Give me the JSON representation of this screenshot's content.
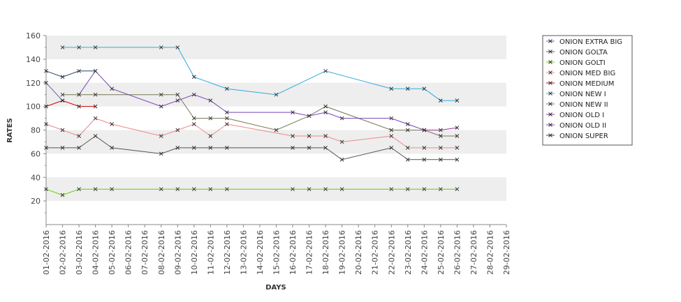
{
  "chart_data": {
    "type": "line",
    "title": "",
    "xlabel": "DAYS",
    "ylabel": "RATES",
    "ylim": [
      0,
      160
    ],
    "yticks": [
      20,
      40,
      60,
      80,
      100,
      120,
      140,
      160
    ],
    "grid": false,
    "background_bands": true,
    "legend_position": "right",
    "x": [
      "01-02-2016",
      "02-02-2016",
      "03-02-2016",
      "04-02-2016",
      "05-02-2016",
      "06-02-2016",
      "07-02-2016",
      "08-02-2016",
      "09-02-2016",
      "10-02-2016",
      "11-02-2016",
      "12-02-2016",
      "13-02-2016",
      "14-02-2016",
      "15-02-2016",
      "16-02-2016",
      "17-02-2016",
      "18-02-2016",
      "19-02-2016",
      "20-02-2016",
      "21-02-2016",
      "22-02-2016",
      "23-02-2016",
      "24-02-2016",
      "25-02-2016",
      "26-02-2016",
      "27-02-2016",
      "28-02-2016",
      "29-02-2016"
    ],
    "series": [
      {
        "name": "ONION EXTRA BIG",
        "color": "#6b5ea8",
        "values": [
          120,
          105,
          null,
          null,
          null,
          null,
          null,
          null,
          null,
          null,
          null,
          null,
          null,
          null,
          null,
          null,
          null,
          null,
          null,
          null,
          null,
          null,
          null,
          null,
          null,
          null,
          null,
          null,
          null
        ]
      },
      {
        "name": "ONION GOLTA",
        "color": "#555555",
        "values": [
          65,
          65,
          65,
          75,
          65,
          null,
          null,
          60,
          65,
          65,
          65,
          65,
          null,
          null,
          null,
          65,
          65,
          65,
          55,
          null,
          null,
          65,
          55,
          55,
          55,
          55,
          null,
          null,
          null
        ]
      },
      {
        "name": "ONION GOLTI",
        "color": "#66cc00",
        "values": [
          30,
          25,
          30,
          30,
          30,
          null,
          null,
          30,
          30,
          30,
          30,
          30,
          null,
          null,
          null,
          30,
          30,
          30,
          30,
          null,
          null,
          30,
          30,
          30,
          30,
          30,
          null,
          null,
          null
        ]
      },
      {
        "name": "ONION MED BIG",
        "color": "#ee8888",
        "values": [
          85,
          80,
          75,
          90,
          85,
          null,
          null,
          75,
          80,
          85,
          75,
          85,
          null,
          null,
          null,
          75,
          75,
          75,
          70,
          null,
          null,
          75,
          65,
          65,
          65,
          65,
          null,
          null,
          null
        ]
      },
      {
        "name": "ONION MEDIUM",
        "color": "#cc0000",
        "values": [
          100,
          105,
          100,
          100,
          null,
          null,
          null,
          null,
          null,
          null,
          null,
          null,
          null,
          null,
          null,
          null,
          null,
          null,
          null,
          null,
          null,
          null,
          null,
          null,
          null,
          null,
          null,
          null,
          null
        ]
      },
      {
        "name": "ONION NEW I",
        "color": "#33aadd",
        "values": [
          null,
          150,
          150,
          150,
          null,
          null,
          null,
          150,
          150,
          125,
          null,
          115,
          null,
          null,
          110,
          null,
          null,
          130,
          null,
          null,
          null,
          115,
          115,
          115,
          105,
          105,
          null,
          null,
          null
        ]
      },
      {
        "name": "ONION NEW II",
        "color": "#777755",
        "values": [
          null,
          110,
          110,
          110,
          null,
          null,
          null,
          110,
          110,
          90,
          90,
          90,
          null,
          null,
          80,
          null,
          92,
          100,
          null,
          null,
          null,
          80,
          80,
          80,
          75,
          75,
          null,
          null,
          null
        ]
      },
      {
        "name": "ONION OLD I",
        "color": "#993399",
        "values": [
          null,
          null,
          null,
          null,
          null,
          null,
          null,
          null,
          null,
          null,
          null,
          null,
          null,
          null,
          null,
          null,
          null,
          null,
          null,
          null,
          null,
          null,
          null,
          80,
          80,
          82,
          null,
          null,
          null
        ]
      },
      {
        "name": "ONION OLD II",
        "color": "#7744bb",
        "values": [
          null,
          null,
          110,
          130,
          115,
          null,
          null,
          100,
          105,
          110,
          105,
          95,
          null,
          null,
          null,
          95,
          92,
          95,
          90,
          null,
          null,
          90,
          85,
          80,
          null,
          null,
          null,
          null,
          null
        ]
      },
      {
        "name": "ONION SUPER",
        "color": "#224466",
        "values": [
          130,
          125,
          130,
          130,
          null,
          null,
          null,
          null,
          null,
          null,
          null,
          null,
          null,
          null,
          null,
          null,
          null,
          null,
          null,
          null,
          null,
          null,
          null,
          null,
          null,
          null,
          null,
          null,
          null
        ]
      }
    ]
  }
}
